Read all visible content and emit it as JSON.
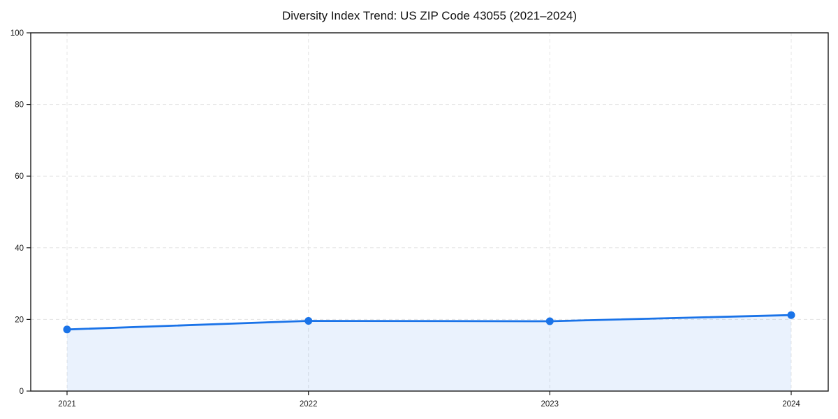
{
  "chart": {
    "title": "Diversity Index Trend: US ZIP Code 43055 (2021–2024)"
  },
  "chart_data": {
    "type": "area",
    "categories": [
      "2021",
      "2022",
      "2023",
      "2024"
    ],
    "values": [
      17.2,
      19.6,
      19.5,
      21.2
    ],
    "title": "Diversity Index Trend: US ZIP Code 43055 (2021–2024)",
    "xlabel": "",
    "ylabel": "",
    "ylim": [
      0,
      100
    ],
    "yticks": [
      0,
      20,
      40,
      60,
      80,
      100
    ],
    "grid": "dashed",
    "legend": "none",
    "line_color": "#1a73e8",
    "fill_color": "#1a73e8",
    "fill_opacity": 0.09,
    "marker_color": "#1a73e8",
    "grid_color": "#e4e4e4",
    "axis_color": "#1a1a1a",
    "tick_label_color": "#1a1a1a",
    "background_color": "#ffffff"
  }
}
